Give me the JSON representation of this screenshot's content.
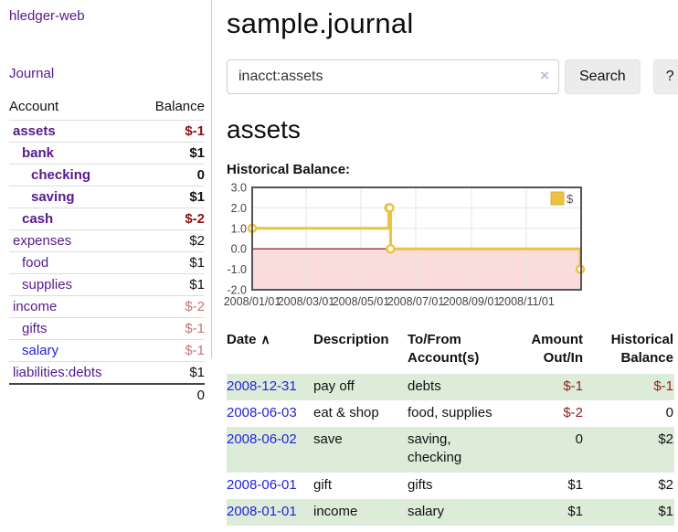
{
  "sidebar": {
    "app_title": "hledger-web",
    "journal_label": "Journal",
    "accounts_table": {
      "headers": {
        "account": "Account",
        "balance": "Balance"
      },
      "rows": [
        {
          "name": "assets",
          "indent": 1,
          "bold": true,
          "link": "purple",
          "balance": "$-1",
          "balance_style": "neg-strong"
        },
        {
          "name": "bank",
          "indent": 2,
          "bold": true,
          "link": "purple",
          "balance": "$1",
          "balance_style": "pos"
        },
        {
          "name": "checking",
          "indent": 3,
          "bold": true,
          "link": "purple",
          "balance": "0",
          "balance_style": "pos"
        },
        {
          "name": "saving",
          "indent": 3,
          "bold": true,
          "link": "purple",
          "balance": "$1",
          "balance_style": "pos"
        },
        {
          "name": "cash",
          "indent": 2,
          "bold": true,
          "link": "purple",
          "balance": "$-2",
          "balance_style": "neg-strong"
        },
        {
          "name": "expenses",
          "indent": 1,
          "bold": false,
          "link": "purple",
          "balance": "$2",
          "balance_style": "pos"
        },
        {
          "name": "food",
          "indent": 2,
          "bold": false,
          "link": "purple",
          "balance": "$1",
          "balance_style": "pos"
        },
        {
          "name": "supplies",
          "indent": 2,
          "bold": false,
          "link": "purple",
          "balance": "$1",
          "balance_style": "pos"
        },
        {
          "name": "income",
          "indent": 1,
          "bold": false,
          "link": "purple",
          "balance": "$-2",
          "balance_style": "neg-faded"
        },
        {
          "name": "gifts",
          "indent": 2,
          "bold": false,
          "link": "purple",
          "balance": "$-1",
          "balance_style": "neg-faded"
        },
        {
          "name": "salary",
          "indent": 2,
          "bold": false,
          "link": "blue",
          "balance": "$-1",
          "balance_style": "neg-faded"
        },
        {
          "name": "liabilities:debts",
          "indent": 1,
          "bold": false,
          "link": "purple",
          "balance": "$1",
          "balance_style": "pos"
        }
      ],
      "total": "0"
    }
  },
  "header": {
    "title": "sample.journal"
  },
  "search": {
    "value": "inacct:assets",
    "clear_icon": "×",
    "search_button_label": "Search",
    "help_button_label": "?"
  },
  "account_page": {
    "title": "assets",
    "chart_label": "Historical Balance:"
  },
  "chart_data": {
    "type": "line",
    "title": "Historical Balance:",
    "series": [
      {
        "name": "$",
        "color": "#edc240",
        "style": "steps-with-markers",
        "points": [
          {
            "date": "2008-01-01",
            "day": 0,
            "value": 1
          },
          {
            "date": "2008-06-01",
            "day": 152,
            "value": 2
          },
          {
            "date": "2008-06-02",
            "day": 153,
            "value": 2
          },
          {
            "date": "2008-06-03",
            "day": 154,
            "value": 0
          },
          {
            "date": "2008-12-31",
            "day": 365,
            "value": -1
          }
        ]
      }
    ],
    "x_range_days": [
      0,
      366
    ],
    "x_ticks": [
      {
        "day": 0,
        "label": "2008/01/01"
      },
      {
        "day": 60,
        "label": "2008/03/01"
      },
      {
        "day": 121,
        "label": "2008/05/01"
      },
      {
        "day": 182,
        "label": "2008/07/01"
      },
      {
        "day": 244,
        "label": "2008/09/01"
      },
      {
        "day": 305,
        "label": "2008/11/01"
      }
    ],
    "y_ticks": [
      3.0,
      2.0,
      1.0,
      0.0,
      -1.0,
      -2.0
    ],
    "y_range": [
      -2,
      3
    ],
    "legend": {
      "position": "top-right",
      "label": "$"
    },
    "grid": true,
    "colors": {
      "negative_region": "#fbdcdc",
      "zero_line": "#8b0000",
      "gridline": "#e6e6e6",
      "border": "#545454",
      "tick_text": "#444444",
      "legend_box_border": "#d7af3a"
    }
  },
  "register": {
    "headers": {
      "date": "Date",
      "description": "Description",
      "accounts": "To/From Account(s)",
      "amount": "Amount Out/In",
      "balance": "Historical Balance"
    },
    "sort_arrow": "∧",
    "rows": [
      {
        "date": "2008-12-31",
        "description": "pay off",
        "accounts": "debts",
        "amount": "$-1",
        "balance": "$-1",
        "shaded": true
      },
      {
        "date": "2008-06-03",
        "description": "eat & shop",
        "accounts": "food, supplies",
        "amount": "$-2",
        "balance": "0",
        "shaded": false
      },
      {
        "date": "2008-06-02",
        "description": "save",
        "accounts": "saving, checking",
        "amount": "0",
        "balance": "$2",
        "shaded": true
      },
      {
        "date": "2008-06-01",
        "description": "gift",
        "accounts": "gifts",
        "amount": "$1",
        "balance": "$2",
        "shaded": false
      },
      {
        "date": "2008-01-01",
        "description": "income",
        "accounts": "salary",
        "amount": "$1",
        "balance": "$1",
        "shaded": true
      }
    ]
  }
}
